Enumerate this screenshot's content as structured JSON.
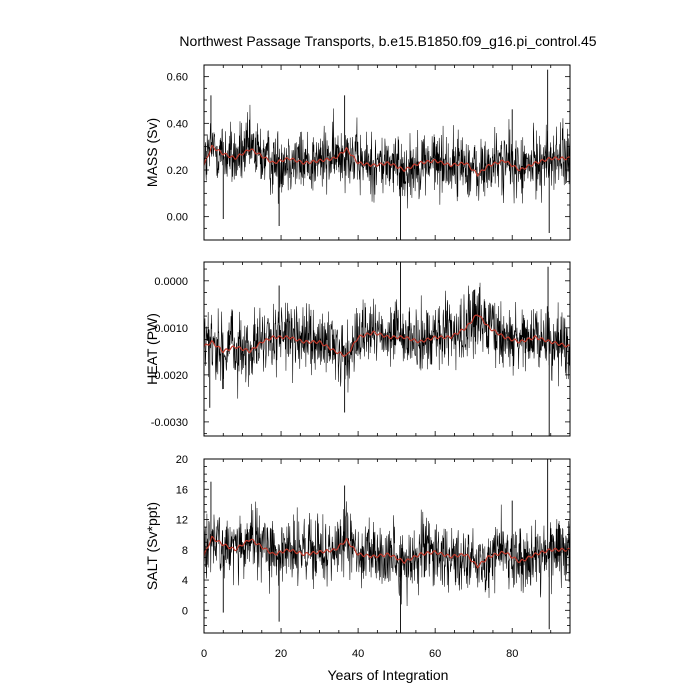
{
  "chart_data": {
    "type": "line",
    "title": "Northwest Passage Transports, b.e15.B1850.f09_g16.pi_control.45",
    "xlabel": "Years of Integration",
    "xlim": [
      0,
      95
    ],
    "xticks": [
      0,
      20,
      40,
      60,
      80
    ],
    "xtick_labels": [
      "0",
      "20",
      "40",
      "60",
      "80"
    ],
    "grid": false,
    "series_colors": {
      "monthly": "#000000",
      "running_mean": "#c0392b"
    },
    "panels": [
      {
        "ylabel": "MASS (Sv)",
        "ylim": [
          -0.1,
          0.65
        ],
        "yticks": [
          0.0,
          0.2,
          0.4,
          0.6
        ],
        "ytick_labels": [
          "0.00",
          "0.20",
          "0.40",
          "0.60"
        ],
        "mean": 0.24,
        "amp": 0.075,
        "smooth": [
          [
            0,
            0.22
          ],
          [
            2,
            0.3
          ],
          [
            5,
            0.27
          ],
          [
            8,
            0.25
          ],
          [
            12,
            0.29
          ],
          [
            15,
            0.26
          ],
          [
            18,
            0.23
          ],
          [
            22,
            0.25
          ],
          [
            26,
            0.23
          ],
          [
            30,
            0.24
          ],
          [
            34,
            0.25
          ],
          [
            37,
            0.29
          ],
          [
            40,
            0.23
          ],
          [
            44,
            0.22
          ],
          [
            48,
            0.23
          ],
          [
            52,
            0.2
          ],
          [
            56,
            0.23
          ],
          [
            60,
            0.24
          ],
          [
            64,
            0.22
          ],
          [
            68,
            0.23
          ],
          [
            71,
            0.18
          ],
          [
            74,
            0.22
          ],
          [
            78,
            0.24
          ],
          [
            82,
            0.2
          ],
          [
            86,
            0.23
          ],
          [
            90,
            0.25
          ],
          [
            95,
            0.25
          ]
        ],
        "spikes": [
          [
            89.2,
            0.63
          ],
          [
            89.6,
            -0.07
          ],
          [
            51,
            -0.1
          ],
          [
            36.5,
            0.52
          ],
          [
            1.8,
            0.52
          ],
          [
            19.5,
            -0.04
          ],
          [
            5,
            -0.01
          ],
          [
            80,
            0.46
          ]
        ],
        "outline": "#000000"
      },
      {
        "ylabel": "HEAT (PW)",
        "ylim": [
          -0.0033,
          0.0004
        ],
        "yticks": [
          -0.003,
          -0.002,
          -0.001,
          0.0
        ],
        "ytick_labels": [
          "-0.0030",
          "-0.0020",
          "-0.0010",
          "0.0000"
        ],
        "mean": -0.00135,
        "amp": 0.00038,
        "smooth": [
          [
            0,
            -0.0014
          ],
          [
            2,
            -0.0013
          ],
          [
            5,
            -0.0015
          ],
          [
            8,
            -0.0014
          ],
          [
            12,
            -0.0015
          ],
          [
            15,
            -0.0013
          ],
          [
            18,
            -0.0012
          ],
          [
            22,
            -0.0012
          ],
          [
            26,
            -0.0013
          ],
          [
            30,
            -0.0013
          ],
          [
            34,
            -0.0015
          ],
          [
            37,
            -0.0016
          ],
          [
            40,
            -0.0012
          ],
          [
            44,
            -0.0011
          ],
          [
            48,
            -0.0012
          ],
          [
            52,
            -0.0012
          ],
          [
            56,
            -0.0013
          ],
          [
            60,
            -0.0012
          ],
          [
            64,
            -0.0012
          ],
          [
            68,
            -0.001
          ],
          [
            71,
            -0.0007
          ],
          [
            74,
            -0.001
          ],
          [
            78,
            -0.0012
          ],
          [
            82,
            -0.0013
          ],
          [
            86,
            -0.0012
          ],
          [
            90,
            -0.0013
          ],
          [
            95,
            -0.0014
          ]
        ],
        "spikes": [
          [
            51,
            0.0004
          ],
          [
            89.3,
            0.0003
          ],
          [
            89.6,
            -0.0033
          ],
          [
            36.5,
            -0.0028
          ],
          [
            1.5,
            -0.0027
          ],
          [
            19.5,
            -0.0001
          ],
          [
            5,
            -0.0023
          ],
          [
            70,
            -0.0002
          ]
        ],
        "outline": "#000000"
      },
      {
        "ylabel": "SALT (Sv*ppt)",
        "ylim": [
          -3.0,
          20.0
        ],
        "yticks": [
          0,
          4,
          8,
          12,
          16,
          20
        ],
        "ytick_labels": [
          "0",
          "4",
          "8",
          "12",
          "16",
          "20"
        ],
        "mean": 7.8,
        "amp": 2.4,
        "smooth": [
          [
            0,
            7.2
          ],
          [
            2,
            9.6
          ],
          [
            5,
            8.7
          ],
          [
            8,
            8.0
          ],
          [
            12,
            9.4
          ],
          [
            15,
            8.4
          ],
          [
            18,
            7.4
          ],
          [
            22,
            8.0
          ],
          [
            26,
            7.4
          ],
          [
            30,
            7.7
          ],
          [
            34,
            8.0
          ],
          [
            37,
            9.3
          ],
          [
            40,
            7.4
          ],
          [
            44,
            7.1
          ],
          [
            48,
            7.4
          ],
          [
            52,
            6.4
          ],
          [
            56,
            7.4
          ],
          [
            60,
            7.7
          ],
          [
            64,
            7.1
          ],
          [
            68,
            7.4
          ],
          [
            71,
            5.8
          ],
          [
            74,
            7.1
          ],
          [
            78,
            7.7
          ],
          [
            82,
            6.4
          ],
          [
            86,
            7.4
          ],
          [
            90,
            8.0
          ],
          [
            95,
            8.0
          ]
        ],
        "spikes": [
          [
            89.2,
            20.0
          ],
          [
            89.6,
            -2.5
          ],
          [
            51,
            -3.0
          ],
          [
            36.5,
            16.5
          ],
          [
            1.8,
            17.0
          ],
          [
            19.5,
            -1.5
          ],
          [
            5,
            -0.3
          ],
          [
            80,
            14.5
          ]
        ],
        "outline": "#000000"
      }
    ]
  }
}
